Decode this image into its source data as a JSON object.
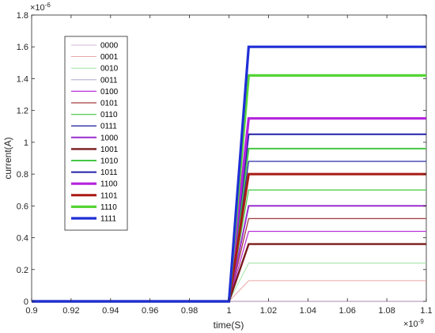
{
  "chart_data": {
    "type": "line",
    "xlabel": "time(S)",
    "ylabel": "current(A)",
    "x_exponent": "×10",
    "x_exponent_power": "-9",
    "y_exponent": "×10",
    "y_exponent_power": "-6",
    "xlim": [
      0.9,
      1.1
    ],
    "ylim": [
      0,
      1.8
    ],
    "xticks": [
      "0.9",
      "0.92",
      "0.94",
      "0.96",
      "0.98",
      "1",
      "1.02",
      "1.04",
      "1.06",
      "1.08",
      "1.1"
    ],
    "yticks": [
      "0",
      "0.2",
      "0.4",
      "0.6",
      "0.8",
      "1",
      "1.2",
      "1.4",
      "1.6",
      "1.8"
    ],
    "grid": false,
    "legend_position": "top-left",
    "step_time": [
      1.0,
      1.01
    ],
    "series": [
      {
        "name": "0000",
        "color": "#c89ec8",
        "width": 0.8,
        "final": 0.0
      },
      {
        "name": "0001",
        "color": "#e28a8a",
        "width": 0.8,
        "final": 0.13
      },
      {
        "name": "0010",
        "color": "#8fe08f",
        "width": 0.8,
        "final": 0.24
      },
      {
        "name": "0011",
        "color": "#9c9cc8",
        "width": 0.8,
        "final": 0.36
      },
      {
        "name": "0100",
        "color": "#b833d9",
        "width": 1.3,
        "final": 0.44
      },
      {
        "name": "0101",
        "color": "#a33a3a",
        "width": 1.3,
        "final": 0.52
      },
      {
        "name": "0110",
        "color": "#4ecf4e",
        "width": 1.3,
        "final": 0.7
      },
      {
        "name": "0111",
        "color": "#2b2ba6",
        "width": 1.3,
        "final": 0.88
      },
      {
        "name": "1000",
        "color": "#9a2fcf",
        "width": 2.0,
        "final": 0.6
      },
      {
        "name": "1001",
        "color": "#7a1a1a",
        "width": 2.4,
        "final": 0.36
      },
      {
        "name": "1010",
        "color": "#45c745",
        "width": 2.0,
        "final": 0.96
      },
      {
        "name": "1011",
        "color": "#2020a8",
        "width": 2.0,
        "final": 1.05
      },
      {
        "name": "1100",
        "color": "#b522dd",
        "width": 3.2,
        "final": 1.15
      },
      {
        "name": "1101",
        "color": "#a81a12",
        "width": 3.0,
        "final": 0.8
      },
      {
        "name": "1110",
        "color": "#55d435",
        "width": 3.2,
        "final": 1.42
      },
      {
        "name": "1111",
        "color": "#1f2fd6",
        "width": 3.2,
        "final": 1.6
      }
    ]
  }
}
